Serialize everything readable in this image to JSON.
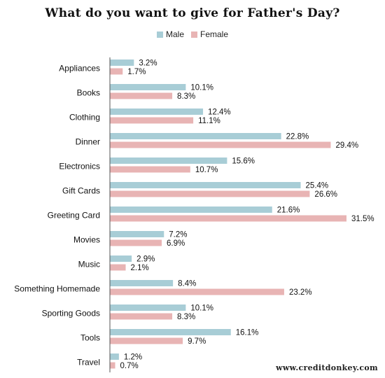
{
  "chart_data": {
    "type": "bar",
    "orientation": "horizontal",
    "title": "What do you want to give for Father's Day?",
    "categories": [
      "Appliances",
      "Books",
      "Clothing",
      "Dinner",
      "Electronics",
      "Gift Cards",
      "Greeting Card",
      "Movies",
      "Music",
      "Something Homemade",
      "Sporting Goods",
      "Tools",
      "Travel"
    ],
    "series": [
      {
        "name": "Male",
        "color": "#a8cdd6",
        "values": [
          3.2,
          10.1,
          12.4,
          22.8,
          15.6,
          25.4,
          21.6,
          7.2,
          2.9,
          8.4,
          10.1,
          16.1,
          1.2
        ],
        "labels": [
          "3.2%",
          "10.1%",
          "12.4%",
          "22.8%",
          "15.6%",
          "25.4%",
          "21.6%",
          "7.2%",
          "2.9%",
          "8.4%",
          "10.1%",
          "16.1%",
          "1.2%"
        ]
      },
      {
        "name": "Female",
        "color": "#e8b4b4",
        "values": [
          1.7,
          8.3,
          11.1,
          29.4,
          10.7,
          26.6,
          31.5,
          6.9,
          2.1,
          23.2,
          8.3,
          9.7,
          0.7
        ],
        "labels": [
          "1.7%",
          "8.3%",
          "11.1%",
          "29.4%",
          "10.7%",
          "26.6%",
          "31.5%",
          "6.9%",
          "2.1%",
          "23.2%",
          "8.3%",
          "9.7%",
          "0.7%"
        ]
      }
    ],
    "xlim": [
      0,
      31.5
    ],
    "grid": false,
    "legend": "top-center"
  },
  "watermark": "www.creditdonkey.com"
}
